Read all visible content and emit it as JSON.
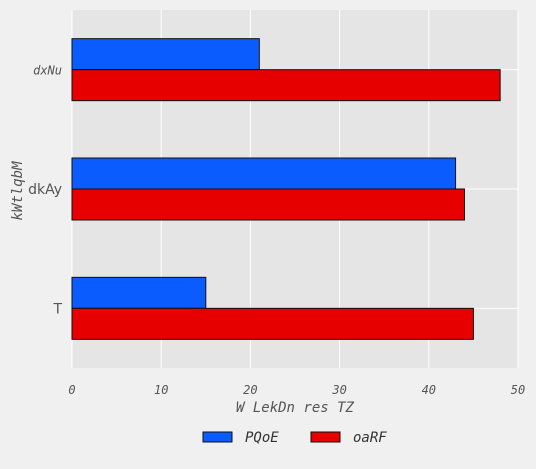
{
  "chart_data": {
    "type": "bar",
    "orientation": "horizontal",
    "categories": [
      "dxNu",
      "dkAy",
      "T"
    ],
    "series": [
      {
        "name": "PQoE",
        "values": [
          21,
          43,
          15
        ],
        "color": "#0b5cff"
      },
      {
        "name": "oaRF",
        "values": [
          48,
          44,
          45
        ],
        "color": "#e60000"
      }
    ],
    "xlabel": "W LekDn res TZ",
    "ylabel": "kWtlqbM",
    "xlim": [
      0,
      50
    ],
    "xticks": [
      0,
      10,
      20,
      30,
      40,
      50
    ],
    "grid": true,
    "legend_position": "bottom-center",
    "background": "#f0f0f0",
    "plot_background": "#e5e5e5"
  }
}
